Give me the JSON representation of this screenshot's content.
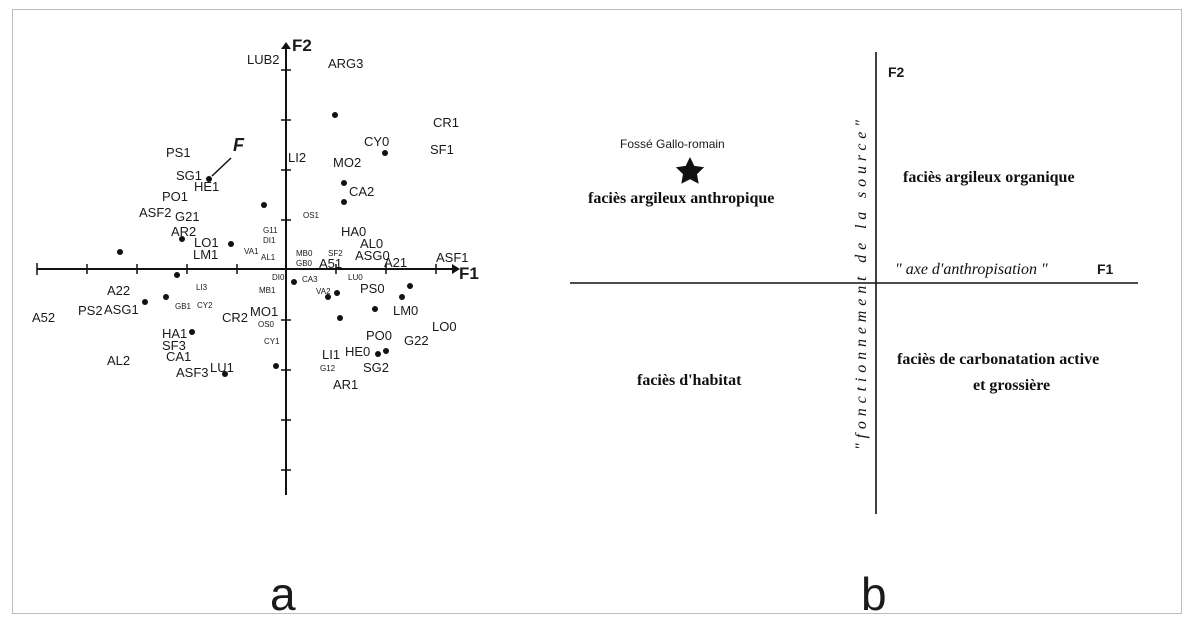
{
  "panel_a": {
    "caption": "a",
    "axis_f1": "F1",
    "axis_f2": "F2",
    "marker_f": "F",
    "labels": [
      "LUB2",
      "ARG3",
      "CR1",
      "PS1",
      "CY0",
      "SF1",
      "MO2",
      "LI2",
      "SG1",
      "HE1",
      "PO1",
      "CA2",
      "ASF2",
      "G21",
      "OS1",
      "AR2",
      "LO1",
      "HA0",
      "LM1",
      "G11",
      "DI1",
      "AL0",
      "VA1",
      "AL1",
      "MB0",
      "SF2",
      "ASG0",
      "A21",
      "ASF1",
      "GB0",
      "A51",
      "DI0",
      "CA3",
      "LU0",
      "A22",
      "LI3",
      "MB1",
      "VA2",
      "PS0",
      "A52",
      "PS2",
      "ASG1",
      "GB1",
      "CY2",
      "LM0",
      "CR2",
      "MO1",
      "OS0",
      "LO0",
      "HA1",
      "PO0",
      "CY1",
      "SF3",
      "G22",
      "CA1",
      "LI1",
      "HE0",
      "AL2",
      "G12",
      "SG2",
      "ASF3",
      "LU1",
      "AR1"
    ]
  },
  "panel_b": {
    "caption": "b",
    "axis_f1": "F1",
    "axis_f2": "F2",
    "star_label": "Fossé Gallo-romain",
    "q_upper_left": "faciès argileux anthropique",
    "q_upper_right": "faciès argileux organique",
    "q_lower_left": "faciès d'habitat",
    "q_lower_right_1": "faciès de carbonatation active",
    "q_lower_right_2": "et grossière",
    "axis_text_f1": "\" axe d'anthropisation \"",
    "axis_text_f2": "\"fonctionnement de la source\""
  }
}
